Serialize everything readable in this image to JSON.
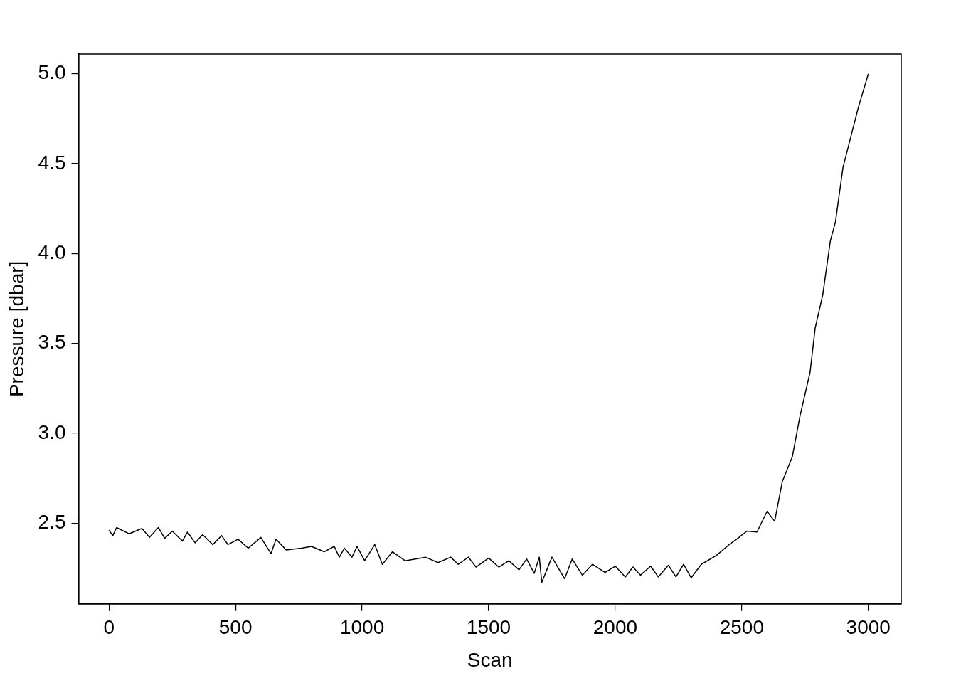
{
  "chart_data": {
    "type": "line",
    "xlabel": "Scan",
    "ylabel": "Pressure [dbar]",
    "color": "#000000",
    "marker": "none",
    "line_style": "solid",
    "grid": false,
    "legend": false,
    "xlim": [
      -120,
      3130
    ],
    "ylim": [
      2.05,
      5.11
    ],
    "xticks": [
      0,
      500,
      1000,
      1500,
      2000,
      2500,
      3000
    ],
    "yticks": [
      {
        "value": 2.5,
        "label": "2.5"
      },
      {
        "value": 3.0,
        "label": "3.0"
      },
      {
        "value": 3.5,
        "label": "3.5"
      },
      {
        "value": 4.0,
        "label": "4.0"
      },
      {
        "value": 4.5,
        "label": "4.5"
      },
      {
        "value": 5.0,
        "label": "5.0"
      }
    ],
    "x": [
      0,
      15,
      30,
      80,
      130,
      160,
      195,
      220,
      250,
      290,
      310,
      340,
      370,
      410,
      445,
      470,
      510,
      550,
      600,
      640,
      660,
      700,
      760,
      800,
      850,
      890,
      910,
      930,
      960,
      980,
      1010,
      1050,
      1080,
      1120,
      1170,
      1250,
      1300,
      1350,
      1380,
      1420,
      1450,
      1500,
      1540,
      1580,
      1620,
      1650,
      1680,
      1700,
      1710,
      1750,
      1800,
      1830,
      1870,
      1910,
      1960,
      2000,
      2040,
      2070,
      2100,
      2140,
      2170,
      2210,
      2240,
      2270,
      2300,
      2340,
      2400,
      2450,
      2480,
      2520,
      2560,
      2600,
      2630,
      2660,
      2700,
      2730,
      2770,
      2790,
      2820,
      2850,
      2870,
      2900,
      2930,
      2960,
      3000
    ],
    "values": [
      2.46,
      2.43,
      2.475,
      2.44,
      2.47,
      2.42,
      2.475,
      2.415,
      2.455,
      2.4,
      2.45,
      2.39,
      2.435,
      2.38,
      2.43,
      2.38,
      2.41,
      2.36,
      2.42,
      2.33,
      2.41,
      2.35,
      2.36,
      2.37,
      2.34,
      2.37,
      2.31,
      2.36,
      2.31,
      2.37,
      2.29,
      2.38,
      2.27,
      2.34,
      2.29,
      2.31,
      2.28,
      2.31,
      2.27,
      2.31,
      2.255,
      2.305,
      2.255,
      2.29,
      2.24,
      2.3,
      2.22,
      2.31,
      2.17,
      2.31,
      2.19,
      2.3,
      2.21,
      2.27,
      2.225,
      2.26,
      2.2,
      2.255,
      2.21,
      2.26,
      2.2,
      2.265,
      2.2,
      2.27,
      2.195,
      2.27,
      2.32,
      2.38,
      2.41,
      2.455,
      2.45,
      2.565,
      2.51,
      2.73,
      2.87,
      3.095,
      3.34,
      3.585,
      3.77,
      4.07,
      4.175,
      4.48,
      4.645,
      4.81,
      5.0
    ]
  }
}
